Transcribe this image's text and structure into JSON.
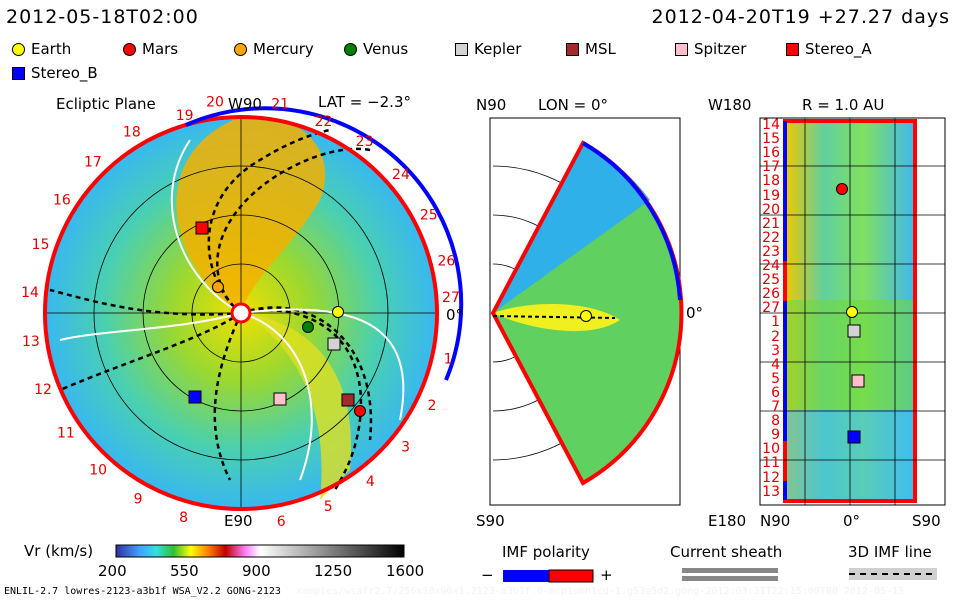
{
  "header": {
    "left_time": "2012-05-18T02:00",
    "right_time": "2012-04-20T19 +27.27 days"
  },
  "legend": [
    {
      "name": "Earth",
      "shape": "circle",
      "color": "#ffff00"
    },
    {
      "name": "Mars",
      "shape": "circle",
      "color": "#ff0000"
    },
    {
      "name": "Mercury",
      "shape": "circle",
      "color": "#ffa500"
    },
    {
      "name": "Venus",
      "shape": "circle",
      "color": "#008000"
    },
    {
      "name": "Kepler",
      "shape": "square",
      "color": "#d3d3d3"
    },
    {
      "name": "MSL",
      "shape": "square",
      "color": "#a52a2a"
    },
    {
      "name": "Spitzer",
      "shape": "square",
      "color": "#ffc0cb"
    },
    {
      "name": "Stereo_A",
      "shape": "square",
      "color": "#ff0000"
    },
    {
      "name": "Stereo_B",
      "shape": "square",
      "color": "#0000ff"
    }
  ],
  "ecliptic": {
    "title": "Ecliptic Plane",
    "top": "W90",
    "bottom": "E90",
    "right": "0°",
    "lat": "LAT = −2.3°",
    "ring_labels": [
      "1",
      "2",
      "3",
      "4",
      "5",
      "6",
      "8",
      "9",
      "10",
      "11",
      "12",
      "13",
      "14",
      "15",
      "16",
      "17",
      "18",
      "19",
      "20",
      "21",
      "22",
      "23",
      "24",
      "25",
      "26",
      "27"
    ]
  },
  "meridional": {
    "top": "N90",
    "bottom": "S90",
    "right": "0°",
    "lon": "LON = 0°"
  },
  "radial": {
    "top": "W180",
    "bottom": "E180",
    "r": "R = 1.0 AU",
    "x_left": "N90",
    "x_mid": "0°",
    "x_right": "S90",
    "y_labels": [
      "14",
      "15",
      "16",
      "17",
      "18",
      "19",
      "20",
      "21",
      "22",
      "23",
      "24",
      "25",
      "26",
      "27",
      "1",
      "2",
      "3",
      "4",
      "5",
      "6",
      "7",
      "8",
      "9",
      "10",
      "11",
      "12",
      "13"
    ]
  },
  "colorbar": {
    "label": "Vr (km/s)",
    "ticks": [
      "200",
      "550",
      "900",
      "1250",
      "1600"
    ]
  },
  "imf": {
    "label": "IMF polarity",
    "minus": "−",
    "plus": "+",
    "neg_color": "#0000ff",
    "pos_color": "#ff0000"
  },
  "sheath": {
    "label": "Current sheath"
  },
  "imfline": {
    "label": "3D IMF line"
  },
  "footer": {
    "run": "ENLIL-2.7 lowres-2123-a3b1f WSA_V2.2 GONG-2123",
    "path": "xamples/wsafr2.7/256x30x90x1.2123-a3b1f.8-mcp1umn1cd-1.g53q5d2.gong-2012:03:31T22:15:00T00    2012-05-13"
  }
}
